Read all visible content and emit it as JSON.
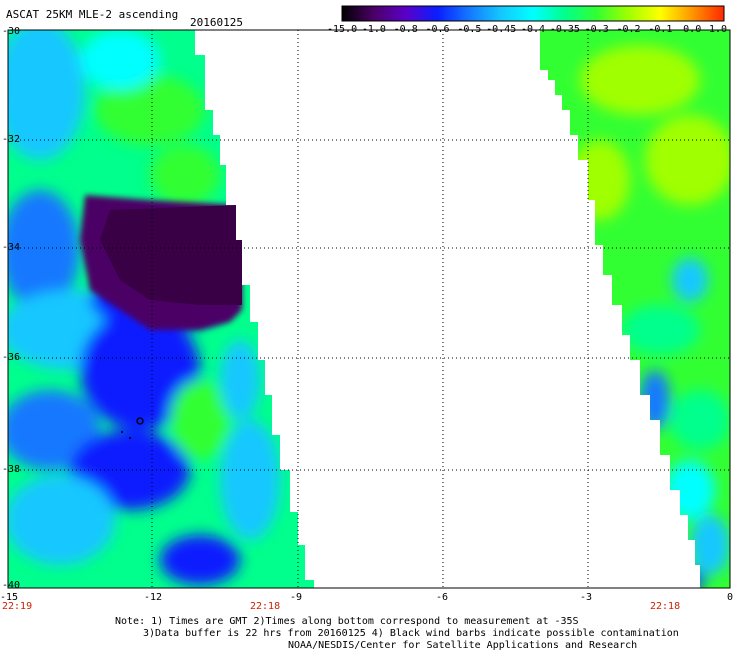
{
  "header": {
    "title": "ASCAT 25KM MLE-2 ascending",
    "date": "20160125"
  },
  "colorbar": {
    "labels": [
      "-15.0",
      "-1.0",
      "-0.8",
      "-0.6",
      "-0.5",
      "-0.45",
      "-0.4",
      "-0.35",
      "-0.3",
      "-0.2",
      "-0.1",
      "0.0",
      "1.0"
    ],
    "colors": [
      "#000000",
      "#4b0066",
      "#5a00c8",
      "#0a1eff",
      "#1478ff",
      "#14c8ff",
      "#00ffff",
      "#00ff8c",
      "#32ff32",
      "#a0ff00",
      "#ffff00",
      "#ff9600",
      "#ff2800"
    ]
  },
  "axes": {
    "y_labels": [
      "-30",
      "-32",
      "-34",
      "-36",
      "-38",
      "-40"
    ],
    "x_labels": [
      "-15",
      "-12",
      "-9",
      "-6",
      "-3",
      "0"
    ]
  },
  "times": {
    "left": "22:19",
    "mid": "22:18",
    "right": "22:18"
  },
  "notes": {
    "line1": "Note: 1) Times are GMT 2)Times along bottom correspond to measurement at -35S",
    "line2": "3)Data buffer is 22 hrs from 20160125 4) Black wind barbs indicate possible contamination",
    "line3": "NOAA/NESDIS/Center for Satellite Applications and Research"
  }
}
